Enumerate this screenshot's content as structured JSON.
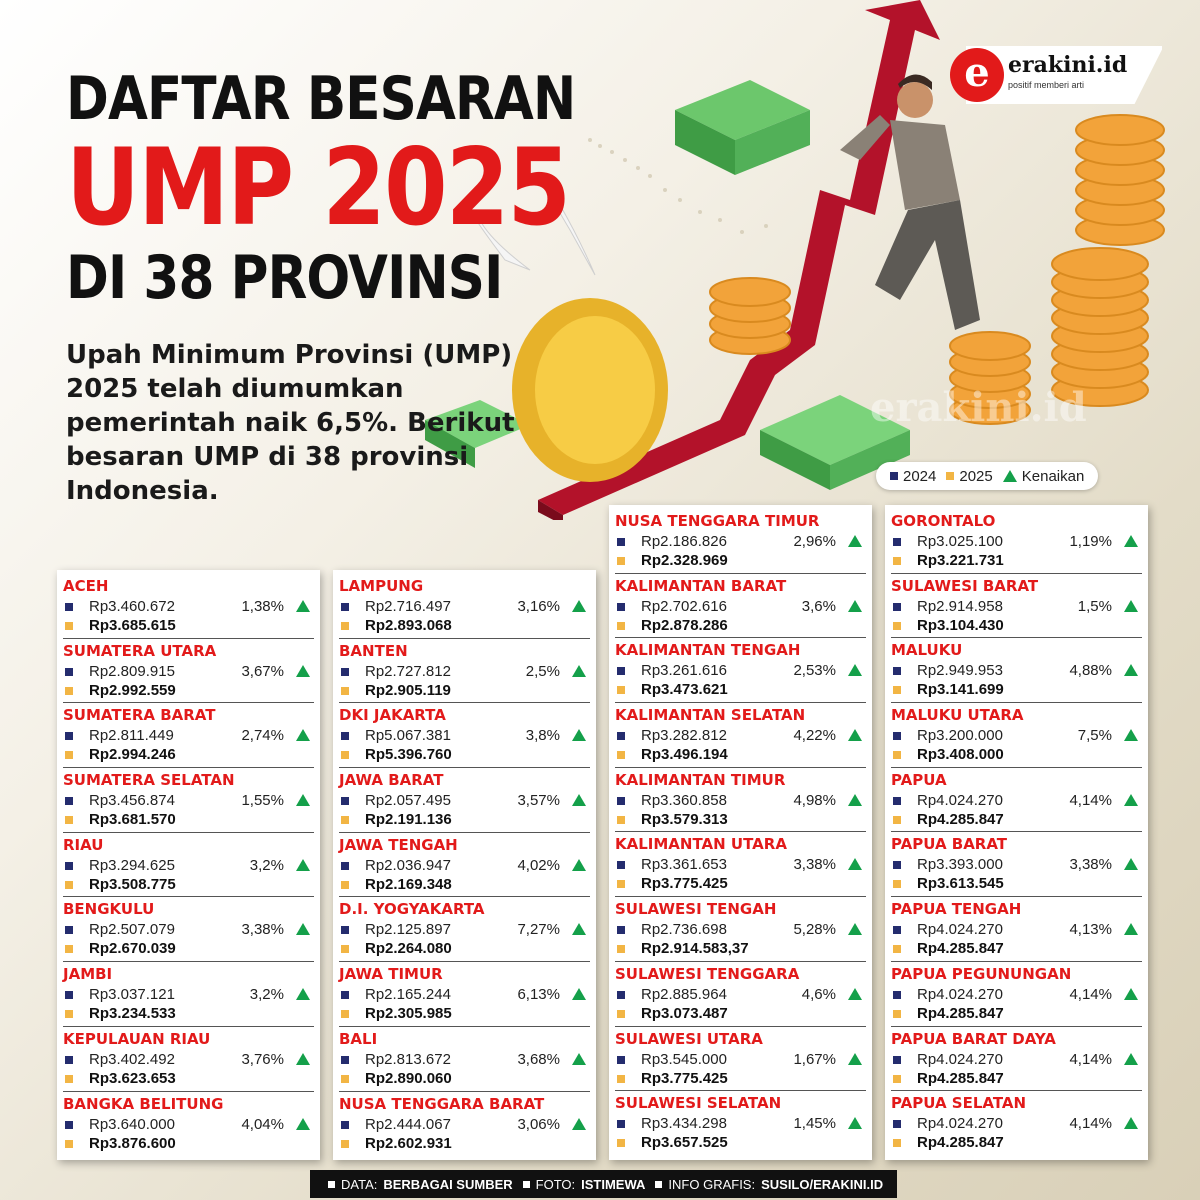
{
  "title": {
    "line1": "DAFTAR BESARAN",
    "line2": "UMP 2025",
    "line3": "DI 38 PROVINSI"
  },
  "intro": "Upah Minimum Provinsi (UMP) 2025 telah diumumkan pemerintah naik 6,5%. Berikut besaran UMP di 38 provinsi Indonesia.",
  "logo": {
    "name": "erakini.id",
    "tagline": "positif memberi arti",
    "watermark": "erakini.id",
    "letter": "e"
  },
  "legend": {
    "y2024": "2024",
    "y2025": "2025",
    "increase": "Kenaikan"
  },
  "colors": {
    "accent_red": "#e21a1a",
    "navy": "#242c6e",
    "gold": "#f2b544",
    "increase_green": "#14a04a"
  },
  "columns": [
    [
      {
        "name": "ACEH",
        "ump2024": "Rp3.460.672",
        "ump2025": "Rp3.685.615",
        "increase": "1,38%"
      },
      {
        "name": "SUMATERA UTARA",
        "ump2024": "Rp2.809.915",
        "ump2025": "Rp2.992.559",
        "increase": "3,67%"
      },
      {
        "name": "SUMATERA BARAT",
        "ump2024": "Rp2.811.449",
        "ump2025": "Rp2.994.246",
        "increase": "2,74%"
      },
      {
        "name": "SUMATERA SELATAN",
        "ump2024": "Rp3.456.874",
        "ump2025": "Rp3.681.570",
        "increase": "1,55%"
      },
      {
        "name": "RIAU",
        "ump2024": "Rp3.294.625",
        "ump2025": "Rp3.508.775",
        "increase": "3,2%"
      },
      {
        "name": "BENGKULU",
        "ump2024": "Rp2.507.079",
        "ump2025": "Rp2.670.039",
        "increase": "3,38%"
      },
      {
        "name": "JAMBI",
        "ump2024": "Rp3.037.121",
        "ump2025": "Rp3.234.533",
        "increase": "3,2%"
      },
      {
        "name": "KEPULAUAN RIAU",
        "ump2024": "Rp3.402.492",
        "ump2025": "Rp3.623.653",
        "increase": "3,76%"
      },
      {
        "name": "BANGKA BELITUNG",
        "ump2024": "Rp3.640.000",
        "ump2025": "Rp3.876.600",
        "increase": "4,04%"
      }
    ],
    [
      {
        "name": "LAMPUNG",
        "ump2024": "Rp2.716.497",
        "ump2025": "Rp2.893.068",
        "increase": "3,16%"
      },
      {
        "name": "BANTEN",
        "ump2024": "Rp2.727.812",
        "ump2025": "Rp2.905.119",
        "increase": "2,5%"
      },
      {
        "name": "DKI JAKARTA",
        "ump2024": "Rp5.067.381",
        "ump2025": "Rp5.396.760",
        "increase": "3,8%"
      },
      {
        "name": "JAWA BARAT",
        "ump2024": "Rp2.057.495",
        "ump2025": "Rp2.191.136",
        "increase": "3,57%"
      },
      {
        "name": "JAWA TENGAH",
        "ump2024": "Rp2.036.947",
        "ump2025": "Rp2.169.348",
        "increase": "4,02%"
      },
      {
        "name": "D.I. YOGYAKARTA",
        "ump2024": "Rp2.125.897",
        "ump2025": "Rp2.264.080",
        "increase": "7,27%"
      },
      {
        "name": "JAWA TIMUR",
        "ump2024": "Rp2.165.244",
        "ump2025": "Rp2.305.985",
        "increase": "6,13%"
      },
      {
        "name": "BALI",
        "ump2024": "Rp2.813.672",
        "ump2025": "Rp2.890.060",
        "increase": "3,68%"
      },
      {
        "name": "NUSA TENGGARA BARAT",
        "ump2024": "Rp2.444.067",
        "ump2025": "Rp2.602.931",
        "increase": "3,06%"
      }
    ],
    [
      {
        "name": "NUSA TENGGARA TIMUR",
        "ump2024": "Rp2.186.826",
        "ump2025": "Rp2.328.969",
        "increase": "2,96%"
      },
      {
        "name": "KALIMANTAN BARAT",
        "ump2024": "Rp2.702.616",
        "ump2025": "Rp2.878.286",
        "increase": "3,6%"
      },
      {
        "name": "KALIMANTAN TENGAH",
        "ump2024": "Rp3.261.616",
        "ump2025": "Rp3.473.621",
        "increase": "2,53%"
      },
      {
        "name": "KALIMANTAN SELATAN",
        "ump2024": "Rp3.282.812",
        "ump2025": "Rp3.496.194",
        "increase": "4,22%"
      },
      {
        "name": "KALIMANTAN TIMUR",
        "ump2024": "Rp3.360.858",
        "ump2025": "Rp3.579.313",
        "increase": "4,98%"
      },
      {
        "name": "KALIMANTAN UTARA",
        "ump2024": "Rp3.361.653",
        "ump2025": "Rp3.775.425",
        "increase": "3,38%"
      },
      {
        "name": "SULAWESI TENGAH",
        "ump2024": "Rp2.736.698",
        "ump2025": "Rp2.914.583,37",
        "increase": "5,28%"
      },
      {
        "name": "SULAWESI TENGGARA",
        "ump2024": "Rp2.885.964",
        "ump2025": "Rp3.073.487",
        "increase": "4,6%"
      },
      {
        "name": "SULAWESI UTARA",
        "ump2024": "Rp3.545.000",
        "ump2025": "Rp3.775.425",
        "increase": "1,67%"
      },
      {
        "name": "SULAWESI SELATAN",
        "ump2024": "Rp3.434.298",
        "ump2025": "Rp3.657.525",
        "increase": "1,45%"
      }
    ],
    [
      {
        "name": "GORONTALO",
        "ump2024": "Rp3.025.100",
        "ump2025": "Rp3.221.731",
        "increase": "1,19%"
      },
      {
        "name": "SULAWESI BARAT",
        "ump2024": "Rp2.914.958",
        "ump2025": "Rp3.104.430",
        "increase": "1,5%"
      },
      {
        "name": "MALUKU",
        "ump2024": "Rp2.949.953",
        "ump2025": "Rp3.141.699",
        "increase": "4,88%"
      },
      {
        "name": "MALUKU UTARA",
        "ump2024": "Rp3.200.000",
        "ump2025": "Rp3.408.000",
        "increase": "7,5%"
      },
      {
        "name": "PAPUA",
        "ump2024": "Rp4.024.270",
        "ump2025": "Rp4.285.847",
        "increase": "4,14%"
      },
      {
        "name": "PAPUA BARAT",
        "ump2024": "Rp3.393.000",
        "ump2025": "Rp3.613.545",
        "increase": "3,38%"
      },
      {
        "name": "PAPUA TENGAH",
        "ump2024": "Rp4.024.270",
        "ump2025": "Rp4.285.847",
        "increase": "4,13%"
      },
      {
        "name": "PAPUA PEGUNUNGAN",
        "ump2024": "Rp4.024.270",
        "ump2025": "Rp4.285.847",
        "increase": "4,14%"
      },
      {
        "name": "PAPUA BARAT DAYA",
        "ump2024": "Rp4.024.270",
        "ump2025": "Rp4.285.847",
        "increase": "4,14%"
      },
      {
        "name": "PAPUA SELATAN",
        "ump2024": "Rp4.024.270",
        "ump2025": "Rp4.285.847",
        "increase": "4,14%"
      }
    ]
  ],
  "footer": {
    "data_label": "DATA:",
    "data_value": "BERBAGAI SUMBER",
    "photo_label": "FOTO:",
    "photo_value": "ISTIMEWA",
    "graphic_label": "INFO GRAFIS:",
    "graphic_value": "SUSILO/ERAKINI.ID"
  }
}
